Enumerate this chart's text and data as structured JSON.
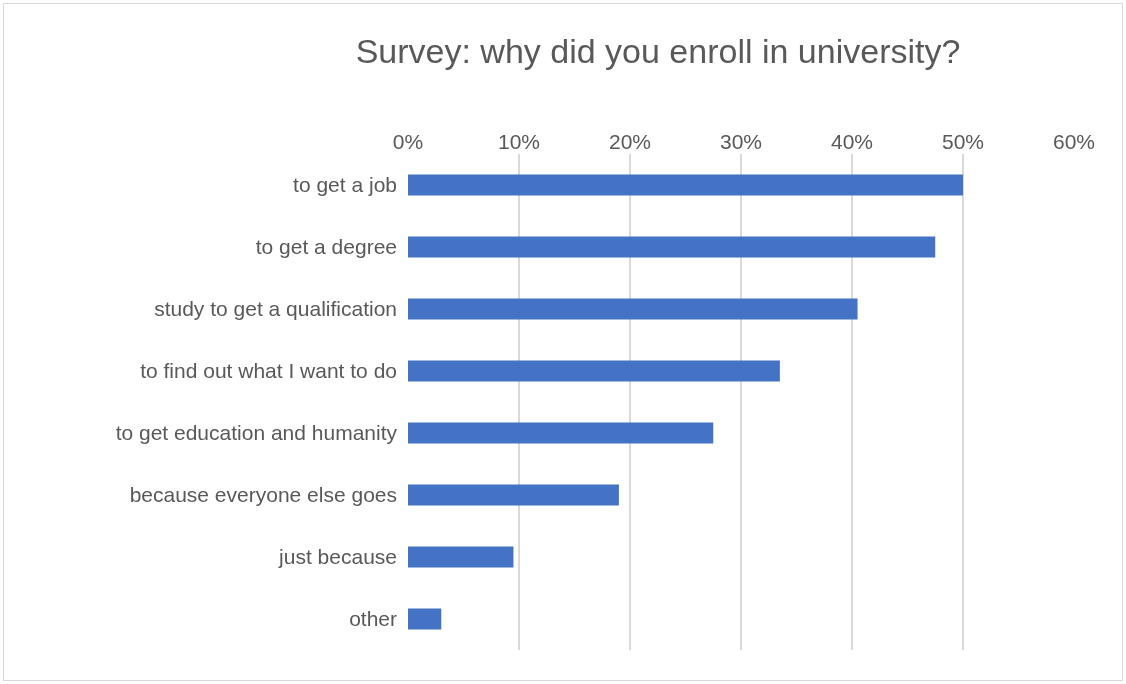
{
  "chart_data": {
    "type": "bar",
    "orientation": "horizontal",
    "title": "Survey: why did you enroll in university?",
    "categories": [
      "to get a job",
      "to get a degree",
      "study to get a qualification",
      "to find out what I want to do",
      "to get education and humanity",
      "because everyone else goes",
      "just because",
      "other"
    ],
    "values": [
      50,
      47.5,
      40.5,
      33.5,
      27.5,
      19,
      9.5,
      3
    ],
    "color": "#4472c4",
    "xlim": [
      0,
      60
    ],
    "xticks": [
      {
        "value": 0,
        "label": "0%"
      },
      {
        "value": 10,
        "label": "10%"
      },
      {
        "value": 20,
        "label": "20%"
      },
      {
        "value": 30,
        "label": "30%"
      },
      {
        "value": 40,
        "label": "40%"
      },
      {
        "value": 50,
        "label": "50%"
      },
      {
        "value": 60,
        "label": "60%"
      }
    ],
    "grid": "x"
  }
}
